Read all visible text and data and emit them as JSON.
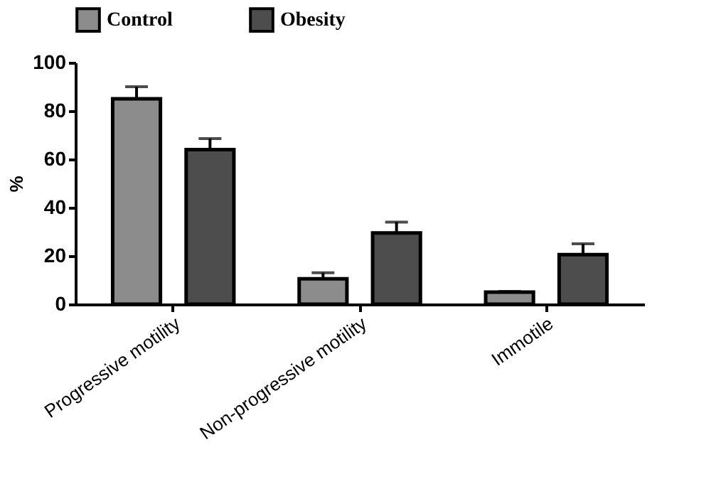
{
  "chart_data": {
    "type": "bar",
    "ylabel": "%",
    "categories": [
      "Progressive motility",
      "Non-progressive motility",
      "Immotile"
    ],
    "series": [
      {
        "name": "Control",
        "color": "#8c8c8c",
        "values": [
          85,
          10.5,
          5
        ],
        "errors": [
          [
            85,
            90
          ],
          [
            10.5,
            13
          ],
          [
            5,
            5.3
          ]
        ]
      },
      {
        "name": "Obesity",
        "color": "#4d4d4d",
        "values": [
          64,
          29.5,
          20.5
        ],
        "errors": [
          [
            64,
            68.5
          ],
          [
            29.5,
            34
          ],
          [
            20.5,
            25
          ]
        ]
      }
    ],
    "ylim": [
      0,
      100
    ],
    "yticks": [
      0,
      20,
      40,
      60,
      80,
      100
    ],
    "grid": false,
    "legend": "top"
  }
}
